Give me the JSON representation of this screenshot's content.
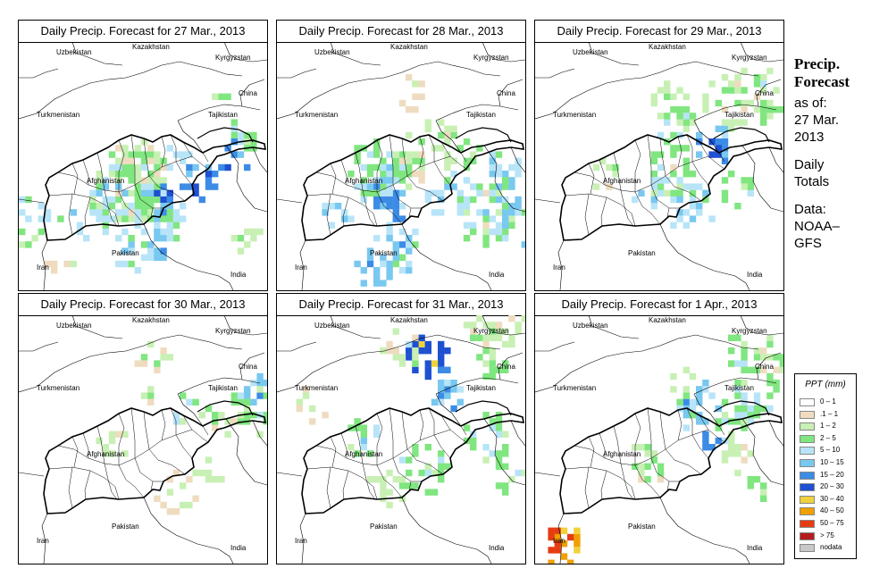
{
  "panels": [
    {
      "title": "Daily Precip. Forecast for  27 Mar., 2013"
    },
    {
      "title": "Daily Precip. Forecast for  28 Mar., 2013"
    },
    {
      "title": "Daily Precip. Forecast for  29 Mar., 2013"
    },
    {
      "title": "Daily Precip. Forecast for  30 Mar., 2013"
    },
    {
      "title": "Daily Precip. Forecast for  31 Mar., 2013"
    },
    {
      "title": "Daily Precip. Forecast for  1 Apr., 2013"
    }
  ],
  "map_labels": {
    "uzbekistan": "Uzbekistan",
    "kazakhstan": "Kazakhstan",
    "kyrgyzstan": "Kyrgyzstan",
    "china": "China",
    "turkmenistan": "Turkmenistan",
    "tajikistan": "Tajikistan",
    "afghanistan": "Afghanistan",
    "pakistan": "Pakistan",
    "iran": "Iran",
    "india": "India"
  },
  "side_text": {
    "heading1": "Precip.",
    "heading2": "Forecast",
    "asof1": "as of:",
    "asof2": "27 Mar.",
    "asof3": "2013",
    "daily1": "Daily",
    "daily2": "Totals",
    "data1": "Data:",
    "data2": "NOAA–",
    "data3": "GFS"
  },
  "legend": {
    "title": "PPT (mm)",
    "items": [
      {
        "label": "0 – 1",
        "color": "#ffffff"
      },
      {
        "label": ".1 – 1",
        "color": "#efdcc0"
      },
      {
        "label": "1 – 2",
        "color": "#c8f0b4"
      },
      {
        "label": "2 – 5",
        "color": "#80e680"
      },
      {
        "label": "5 – 10",
        "color": "#b8e4f8"
      },
      {
        "label": "10 – 15",
        "color": "#78c8f0"
      },
      {
        "label": "15 – 20",
        "color": "#3c8ce6"
      },
      {
        "label": "20 – 30",
        "color": "#1e50d2"
      },
      {
        "label": "30 – 40",
        "color": "#f0d23c"
      },
      {
        "label": "40 – 50",
        "color": "#f0a000"
      },
      {
        "label": "50 – 75",
        "color": "#e63c14"
      },
      {
        "label": "> 75",
        "color": "#b41e1e"
      },
      {
        "label": "nodata",
        "color": "#c8c8c8"
      }
    ]
  }
}
